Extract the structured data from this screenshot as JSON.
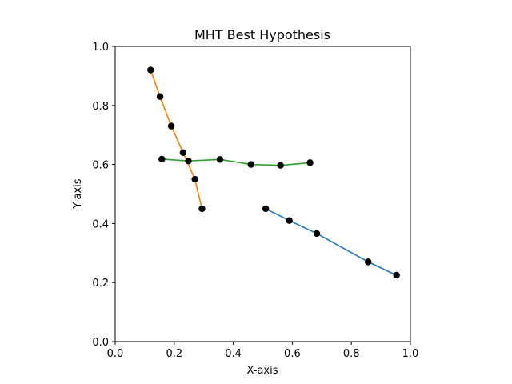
{
  "chart_data": {
    "type": "line",
    "title": "MHT Best Hypothesis",
    "xlabel": "X-axis",
    "ylabel": "Y-axis",
    "xlim": [
      0.0,
      1.0
    ],
    "ylim": [
      0.0,
      1.0
    ],
    "xticks": [
      "0.0",
      "0.2",
      "0.4",
      "0.6",
      "0.8",
      "1.0"
    ],
    "yticks": [
      "0.0",
      "0.2",
      "0.4",
      "0.6",
      "0.8",
      "1.0"
    ],
    "grid": false,
    "legend": false,
    "series": [
      {
        "color": "#1f77b4",
        "x": [
          0.51,
          0.59,
          0.683,
          0.857,
          0.953
        ],
        "y": [
          0.45,
          0.41,
          0.366,
          0.27,
          0.225
        ]
      },
      {
        "color": "#ff7f0e",
        "x": [
          0.12,
          0.152,
          0.19,
          0.23,
          0.27,
          0.294
        ],
        "y": [
          0.92,
          0.83,
          0.73,
          0.64,
          0.55,
          0.45
        ]
      },
      {
        "color": "#2ca02c",
        "x": [
          0.158,
          0.248,
          0.355,
          0.46,
          0.56,
          0.66
        ],
        "y": [
          0.618,
          0.612,
          0.617,
          0.6,
          0.597,
          0.606
        ]
      }
    ],
    "scatter": {
      "color": "#000000",
      "x": [
        0.51,
        0.59,
        0.683,
        0.857,
        0.953,
        0.12,
        0.152,
        0.19,
        0.23,
        0.27,
        0.294,
        0.158,
        0.248,
        0.355,
        0.46,
        0.56,
        0.66
      ],
      "y": [
        0.45,
        0.41,
        0.366,
        0.27,
        0.225,
        0.92,
        0.83,
        0.73,
        0.64,
        0.55,
        0.45,
        0.618,
        0.612,
        0.617,
        0.6,
        0.597,
        0.606
      ]
    }
  }
}
